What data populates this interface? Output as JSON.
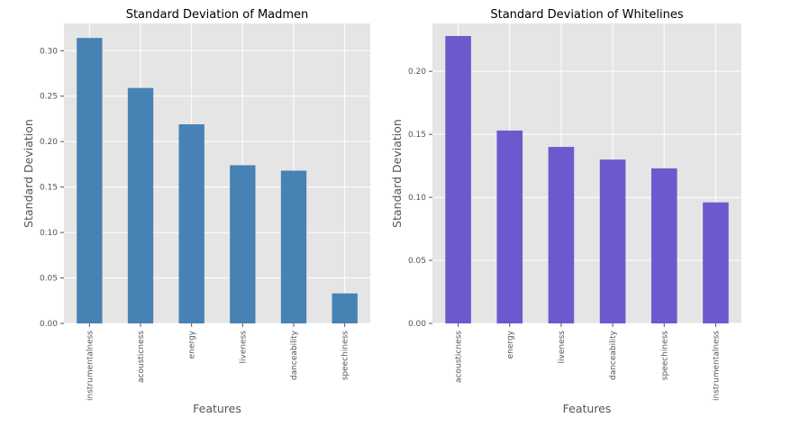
{
  "chart_data": [
    {
      "type": "bar",
      "title": "Standard Deviation of Madmen",
      "xlabel": "Features",
      "ylabel": "Standard Deviation",
      "categories": [
        "instrumentalness",
        "acousticness",
        "energy",
        "liveness",
        "danceability",
        "speechiness"
      ],
      "values": [
        0.314,
        0.259,
        0.219,
        0.174,
        0.168,
        0.033
      ],
      "ylim": [
        0,
        0.33
      ],
      "yticks": [
        0.0,
        0.05,
        0.1,
        0.15,
        0.2,
        0.25,
        0.3
      ],
      "ytick_labels": [
        "0.00",
        "0.05",
        "0.10",
        "0.15",
        "0.20",
        "0.25",
        "0.30"
      ],
      "grid": true,
      "background_color": "#E5E5E5",
      "bar_color": "#4682B4"
    },
    {
      "type": "bar",
      "title": "Standard Deviation of Whitelines",
      "xlabel": "Features",
      "ylabel": "Standard Deviation",
      "categories": [
        "acousticness",
        "energy",
        "liveness",
        "danceability",
        "speechiness",
        "instrumentalness"
      ],
      "values": [
        0.228,
        0.153,
        0.14,
        0.13,
        0.123,
        0.096
      ],
      "ylim": [
        0,
        0.238
      ],
      "yticks": [
        0.0,
        0.05,
        0.1,
        0.15,
        0.2
      ],
      "ytick_labels": [
        "0.00",
        "0.05",
        "0.10",
        "0.15",
        "0.20"
      ],
      "grid": true,
      "background_color": "#E5E5E5",
      "bar_color": "#6A5ACD"
    }
  ]
}
